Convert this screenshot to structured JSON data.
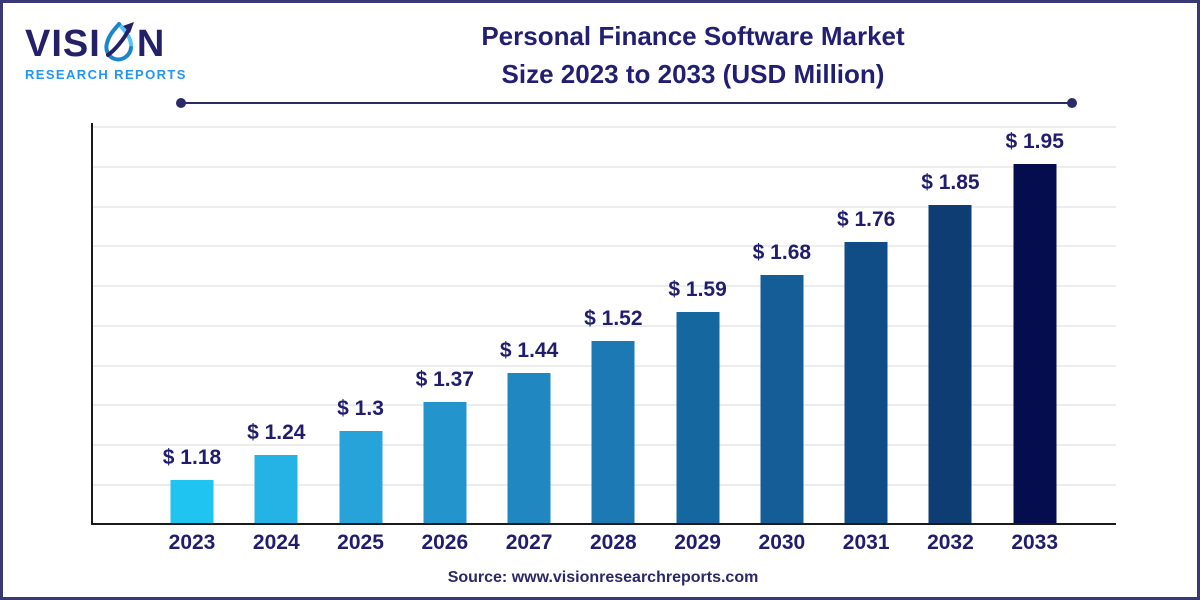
{
  "page": {
    "background": "#ffffff",
    "border_color": "#3a3875"
  },
  "logo": {
    "brand_prefix": "VISI",
    "brand_suffix": "N",
    "subtitle": "RESEARCH REPORTS",
    "brand_color": "#252168",
    "subtitle_color": "#2196f3"
  },
  "header": {
    "title_line1": "Personal Finance Software Market",
    "title_line2": "Size 2023 to 2033 (USD Million)",
    "title_color": "#221f73"
  },
  "footer": {
    "source_text": "Source: www.visionresearchreports.com"
  },
  "chart_data": {
    "type": "bar",
    "title": "Personal Finance Software Market Size 2023 to 2033 (USD Million)",
    "unit": "USD Million",
    "categories": [
      "2023",
      "2024",
      "2025",
      "2026",
      "2027",
      "2028",
      "2029",
      "2030",
      "2031",
      "2032",
      "2033"
    ],
    "values": [
      1.18,
      1.24,
      1.3,
      1.37,
      1.44,
      1.52,
      1.59,
      1.68,
      1.76,
      1.85,
      1.95
    ],
    "value_labels": [
      "$ 1.18",
      "$ 1.24",
      "$ 1.3",
      "$ 1.37",
      "$ 1.44",
      "$ 1.52",
      "$ 1.59",
      "$ 1.68",
      "$ 1.76",
      "$ 1.85",
      "$ 1.95"
    ],
    "bar_colors": [
      "#1fc4f1",
      "#25b2e5",
      "#28a3d9",
      "#2494cd",
      "#2087c1",
      "#1d79b3",
      "#15679f",
      "#155d97",
      "#104c85",
      "#0d3d72",
      "#060d4f"
    ],
    "xlabel": "",
    "ylabel": "",
    "y_tick_labels_visible": false,
    "grid": "horizontal",
    "gridline_count": 10,
    "legend": "none",
    "label_text_color": "#201d6e",
    "axis_color": "#1a1a1a",
    "gridline_color": "#ededed"
  }
}
